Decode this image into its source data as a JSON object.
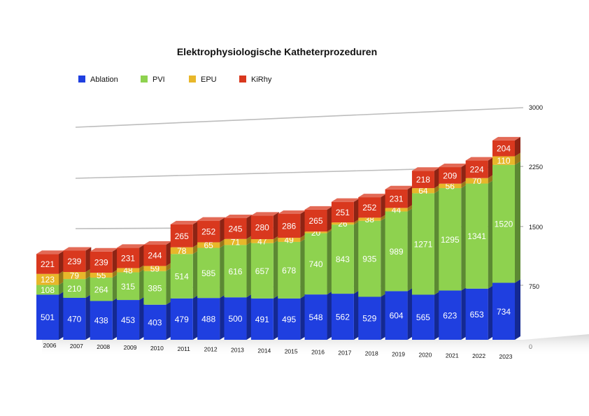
{
  "chart_data": {
    "type": "bar",
    "stacked": true,
    "title": "Elektrophysiologische Katheterprozeduren",
    "xlabel": "",
    "ylabel": "",
    "categories": [
      "2006",
      "2007",
      "2008",
      "2009",
      "2010",
      "2011",
      "2012",
      "2013",
      "2014",
      "2015",
      "2016",
      "2017",
      "2018",
      "2019",
      "2020",
      "2021",
      "2022",
      "2023"
    ],
    "series": [
      {
        "name": "Ablation",
        "color": "#1f3fe0",
        "values": [
          501,
          470,
          438,
          453,
          403,
          479,
          488,
          500,
          491,
          495,
          548,
          562,
          529,
          604,
          565,
          623,
          653,
          734
        ]
      },
      {
        "name": "PVI",
        "color": "#8ed24f",
        "values": [
          108,
          210,
          264,
          315,
          385,
          514,
          585,
          616,
          657,
          678,
          740,
          843,
          935,
          989,
          1271,
          1295,
          1341,
          1520
        ]
      },
      {
        "name": "EPU",
        "color": "#e8b72a",
        "values": [
          123,
          79,
          55,
          48,
          59,
          78,
          65,
          71,
          47,
          49,
          20,
          26,
          38,
          44,
          64,
          56,
          70,
          110
        ]
      },
      {
        "name": "KiRhy",
        "color": "#d9381e",
        "values": [
          221,
          239,
          239,
          231,
          244,
          265,
          252,
          245,
          280,
          286,
          265,
          251,
          252,
          231,
          218,
          209,
          224,
          204
        ]
      }
    ],
    "ylim": [
      0,
      3000
    ],
    "yticks": [
      0,
      750,
      1500,
      2250,
      3000
    ],
    "grid": true,
    "legend_position": "top-left"
  }
}
